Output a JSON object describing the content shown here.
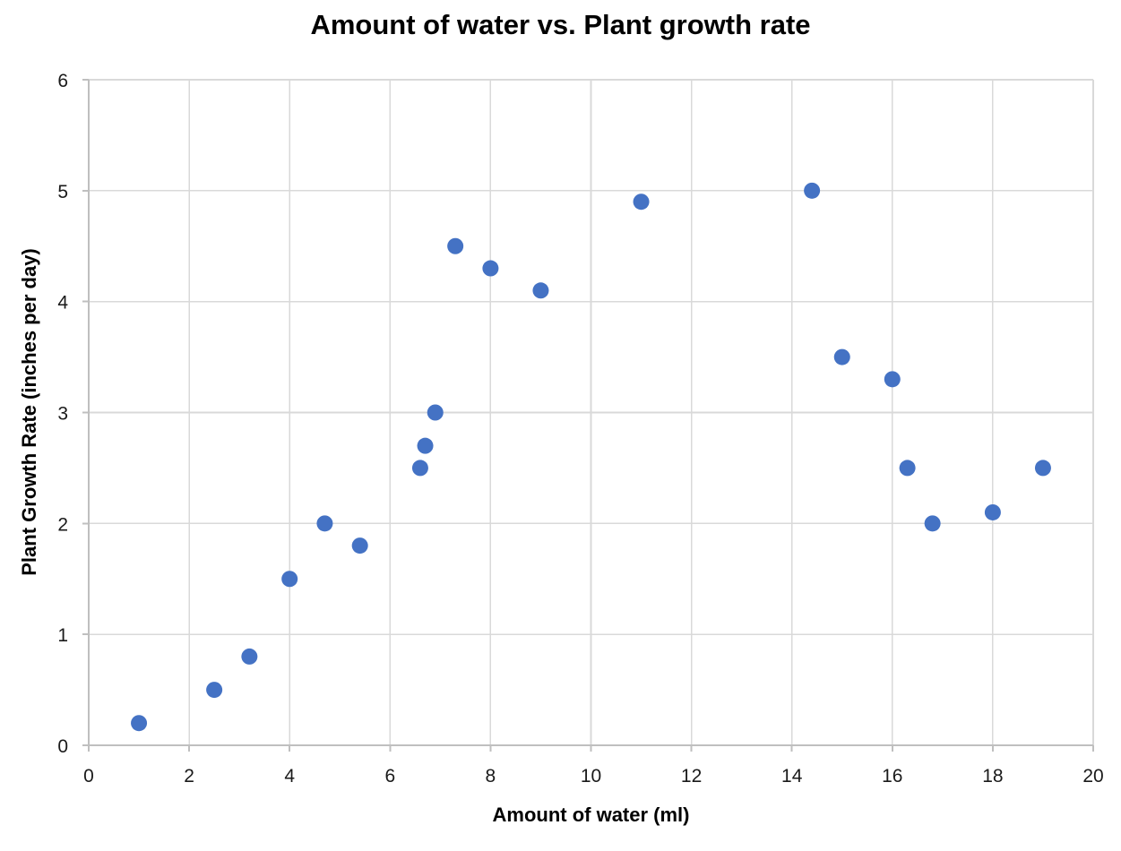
{
  "chart_data": {
    "type": "scatter",
    "title": "Amount of water vs. Plant growth rate",
    "xlabel": "Amount of water (ml)",
    "ylabel": "Plant Growth Rate (inches per day)",
    "xlim": [
      0,
      20
    ],
    "ylim": [
      0,
      6
    ],
    "x_ticks": [
      0,
      2,
      4,
      6,
      8,
      10,
      12,
      14,
      16,
      18,
      20
    ],
    "y_ticks": [
      0,
      1,
      2,
      3,
      4,
      5,
      6
    ],
    "grid": true,
    "legend": false,
    "points": [
      [
        1,
        0.2
      ],
      [
        2.5,
        0.5
      ],
      [
        3.2,
        0.8
      ],
      [
        4,
        1.5
      ],
      [
        4.7,
        2
      ],
      [
        5.4,
        1.8
      ],
      [
        6.6,
        2.5
      ],
      [
        6.7,
        2.7
      ],
      [
        6.9,
        3
      ],
      [
        7.3,
        4.5
      ],
      [
        8,
        4.3
      ],
      [
        9,
        4.1
      ],
      [
        11,
        4.9
      ],
      [
        14.4,
        5
      ],
      [
        15,
        3.5
      ],
      [
        16,
        3.3
      ],
      [
        16.3,
        2.5
      ],
      [
        16.8,
        2
      ],
      [
        18,
        2.1
      ],
      [
        19,
        2.5
      ]
    ],
    "colors": {
      "marker": "#4472C4",
      "gridline": "#D9D9D9",
      "axis_line": "#BFBFBF",
      "tick_label": "#1A1A1A",
      "title": "#000000"
    }
  }
}
